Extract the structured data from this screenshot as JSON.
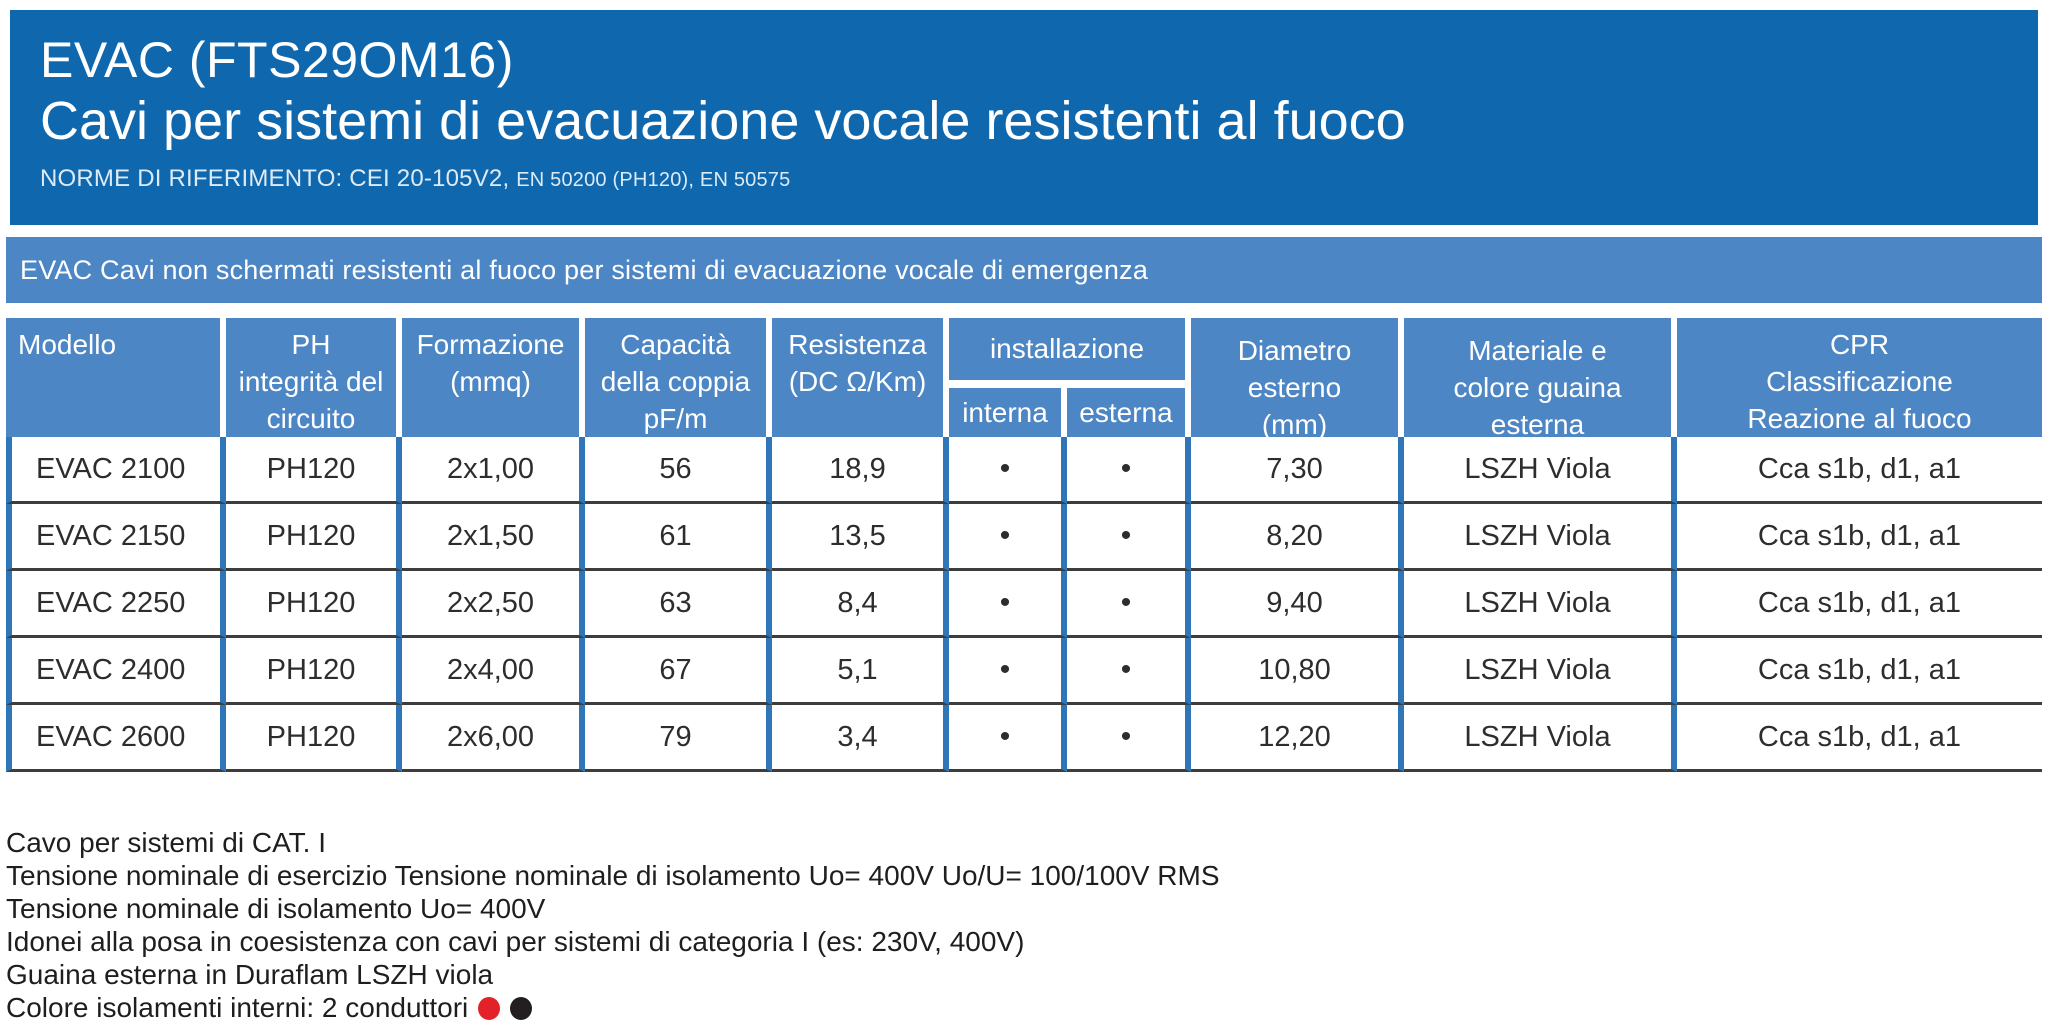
{
  "header": {
    "title_line1": "EVAC (FTS29OM16)",
    "title_line2": "Cavi per sistemi di evacuazione vocale resistenti al fuoco",
    "reference_norms": "NORME DI RIFERIMENTO: CEI 20-105V2,",
    "reference_norms_small": "EN 50200 (PH120), EN 50575",
    "background_color": "#0f67ad"
  },
  "banner": {
    "text": "EVAC Cavi non schermati resistenti al fuoco per sistemi di evacuazione vocale di emergenza",
    "background_color": "#4d86c4"
  },
  "table": {
    "header_background": "#4d86c4",
    "divider_blue": "#2e76b8",
    "row_line_color": "#3d3d3d",
    "columns": {
      "modello": "Modello",
      "ph": "PH\nintegrità del\ncircuito",
      "formazione": "Formazione\n(mmq)",
      "capacita": "Capacità\ndella coppia\npF/m",
      "resistenza": "Resistenza\n(DC Ω/Km)",
      "installazione": "installazione",
      "interna": "interna",
      "esterna": "esterna",
      "diametro": "Diametro\nesterno\n(mm)",
      "materiale": "Materiale e\ncolore guaina\nesterna",
      "cpr": "CPR\nClassificazione\nReazione al fuoco"
    },
    "rows": [
      {
        "model": "EVAC 2100",
        "ph": "PH120",
        "formation": "2x1,00",
        "capacity": "56",
        "resistance": "18,9",
        "interna": "•",
        "esterna": "•",
        "diameter": "7,30",
        "sheath": "LSZH Viola",
        "cpr": "Cca s1b, d1, a1"
      },
      {
        "model": "EVAC 2150",
        "ph": "PH120",
        "formation": "2x1,50",
        "capacity": "61",
        "resistance": "13,5",
        "interna": "•",
        "esterna": "•",
        "diameter": "8,20",
        "sheath": "LSZH Viola",
        "cpr": "Cca s1b, d1, a1"
      },
      {
        "model": "EVAC 2250",
        "ph": "PH120",
        "formation": "2x2,50",
        "capacity": "63",
        "resistance": "8,4",
        "interna": "•",
        "esterna": "•",
        "diameter": "9,40",
        "sheath": "LSZH Viola",
        "cpr": "Cca s1b, d1, a1"
      },
      {
        "model": "EVAC 2400",
        "ph": "PH120",
        "formation": "2x4,00",
        "capacity": "67",
        "resistance": "5,1",
        "interna": "•",
        "esterna": "•",
        "diameter": "10,80",
        "sheath": "LSZH Viola",
        "cpr": "Cca s1b, d1, a1"
      },
      {
        "model": "EVAC 2600",
        "ph": "PH120",
        "formation": "2x6,00",
        "capacity": "79",
        "resistance": "3,4",
        "interna": "•",
        "esterna": "•",
        "diameter": "12,20",
        "sheath": "LSZH Viola",
        "cpr": "Cca s1b, d1, a1"
      }
    ]
  },
  "footer": {
    "lines": [
      "Cavo per sistemi di CAT. I",
      "Tensione nominale di esercizio Tensione nominale di isolamento Uo= 400V Uo/U= 100/100V RMS",
      "Tensione nominale di isolamento Uo= 400V",
      "Idonei alla posa in coesistenza con cavi per sistemi di categoria I (es: 230V, 400V)",
      "Guaina esterna in Duraflam LSZH viola",
      "Colore isolamenti interni: 2 conduttori"
    ],
    "conductor_colors": [
      "#e32129",
      "#231f20"
    ]
  }
}
